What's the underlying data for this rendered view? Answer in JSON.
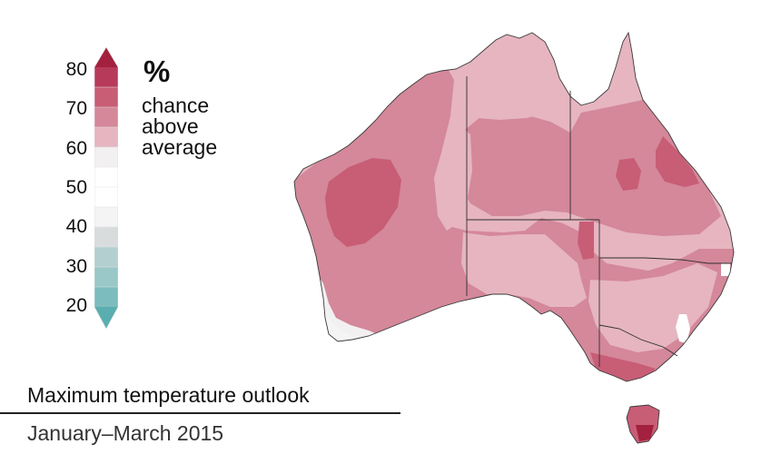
{
  "legend": {
    "unit": "%",
    "caption": [
      "chance",
      "above",
      "average"
    ],
    "ticks": [
      "80",
      "70",
      "60",
      "50",
      "40",
      "30",
      "20"
    ],
    "colors": {
      "c80plus": "#a3213e",
      "c75": "#b83a5a",
      "c70": "#c85d76",
      "c65": "#d4889a",
      "c60": "#e6b5c0",
      "c55": "#f2f0f1",
      "c50": "#ffffff",
      "c45": "#f4f4f4",
      "c40": "#d8dcdc",
      "c35": "#b4cfd0",
      "c30": "#8ec3c4",
      "c20": "#5aaeb0"
    }
  },
  "title": "Maximum temperature outlook",
  "subtitle": "January–March 2015",
  "map_layers": [
    "region-60-65",
    "region-65-70",
    "region-70-75",
    "region-75-80",
    "region-50-55",
    "region-55-60"
  ]
}
